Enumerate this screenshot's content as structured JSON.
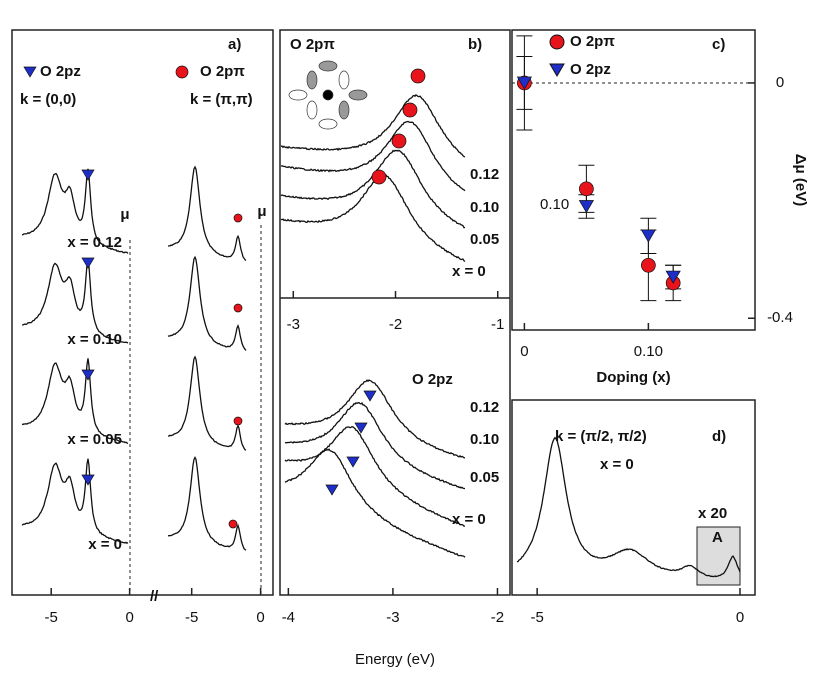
{
  "xlabel": "Energy (eV)",
  "chart_data": [
    {
      "type": "line",
      "xlim": [
        -7.5,
        1.3
      ],
      "xticks": [
        -5,
        0
      ],
      "labels": [
        "a)",
        "O 2pz",
        "k = (0,0)",
        "μ",
        "x = 0.12",
        "x = 0.10",
        "x = 0.05",
        "x = 0"
      ]
    },
    {
      "type": "line",
      "xlim": [
        -7.3,
        0.9
      ],
      "xticks": [
        -5,
        0
      ],
      "labels": [
        "O 2pπ",
        "k = (π,π)",
        "μ"
      ]
    },
    {
      "type": "line",
      "xlim": [
        -3.13,
        -0.88
      ],
      "xticks": [
        -3,
        -2,
        -1
      ],
      "labels": [
        "b)",
        "O 2pπ",
        "0.12",
        "0.10",
        "0.05",
        "x = 0"
      ]
    },
    {
      "type": "line",
      "xlim": [
        -4.08,
        -1.88
      ],
      "xticks": [
        -4,
        -3,
        -2
      ],
      "labels": [
        "O 2pz",
        "0.12",
        "0.10",
        "0.05",
        "x = 0"
      ]
    },
    {
      "type": "scatter",
      "title": "c)",
      "xlabel": "Doping (x)",
      "ylabel": "Δμ (eV)",
      "annotations": [
        "0.10"
      ],
      "x": [
        0,
        0.05,
        0.1,
        0.12
      ],
      "series": [
        {
          "name": "O 2pπ",
          "color": "#e8141c",
          "marker": "circle",
          "values": [
            0,
            -0.18,
            -0.31,
            -0.34
          ],
          "errors": [
            0.045,
            0.04,
            0.06,
            0.03
          ]
        },
        {
          "name": "O 2pz",
          "color": "#1e2ec8",
          "marker": "triangle",
          "values": [
            0,
            -0.21,
            -0.26,
            -0.33
          ],
          "errors": [
            0.08,
            0.02,
            0.03,
            0.02
          ]
        }
      ],
      "xlim": [
        -0.01,
        0.186
      ],
      "ylim": [
        -0.42,
        0.09
      ],
      "xticks": [
        0,
        {
          "value": 0.1,
          "label": "0.10"
        }
      ],
      "yticks": [
        0,
        -0.4
      ],
      "legend": "top-left"
    },
    {
      "type": "line",
      "xlim": [
        -5.62,
        0.37
      ],
      "xticks": [
        -5,
        0
      ],
      "labels": [
        "k = (π/2, π/2)",
        "x = 0",
        "x 20",
        "A",
        "d)"
      ]
    }
  ]
}
